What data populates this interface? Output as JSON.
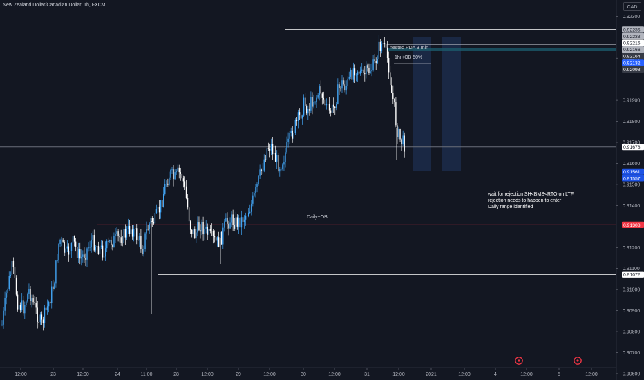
{
  "header": {
    "title": "New Zealand Dollar/Canadian Dollar, 1h, FXCM",
    "currency": "CAD"
  },
  "annotations": {
    "nested_pda": "nested PDA 3 min",
    "ob_50": "1hr+OB 50%",
    "daily_ob": "Daily+OB",
    "note_lines": [
      "wait for rejection SH<BMS<RTO on LTF",
      "rejection needs to happen to enter",
      "Daily range identified"
    ]
  },
  "chart_data": {
    "type": "candlestick",
    "title": "New Zealand Dollar/Canadian Dollar, 1h, FXCM",
    "y_ticks": [
      "0.92300",
      "0.92100",
      "0.91900",
      "0.91800",
      "0.91700",
      "0.91600",
      "0.91500",
      "0.91400",
      "0.91200",
      "0.91100",
      "0.91000",
      "0.90900",
      "0.90800",
      "0.90700",
      "0.90600"
    ],
    "x_ticks": [
      "12:00",
      "23",
      "12:00",
      "24",
      "11:00",
      "28",
      "12:00",
      "29",
      "12:00",
      "30",
      "12:00",
      "31",
      "12:00",
      "2021",
      "12:00",
      "4",
      "12:00",
      "5",
      "12:00"
    ],
    "price_labels": [
      {
        "value": "0.92236",
        "color": "#b2b5be",
        "text": "#131722"
      },
      {
        "value": "0.92233",
        "color": "#b2b5be",
        "text": "#131722"
      },
      {
        "value": "0.92216",
        "color": "#ffffff",
        "text": "#131722"
      },
      {
        "value": "0.92166",
        "color": "#b2b5be",
        "text": "#131722"
      },
      {
        "value": "0.92164",
        "color": "#363a45",
        "text": "#ffffff"
      },
      {
        "value": "0.92132",
        "color": "#2962ff",
        "text": "#ffffff"
      },
      {
        "value": "0.92098",
        "color": "#363a45",
        "text": "#ffffff"
      },
      {
        "value": "0.91678",
        "color": "#ffffff",
        "text": "#131722"
      },
      {
        "value": "0.91561",
        "color": "#1e53e5",
        "text": "#ffffff"
      },
      {
        "value": "0.91557",
        "color": "#1e53e5",
        "text": "#ffffff"
      },
      {
        "value": "0.91308",
        "color": "#f23645",
        "text": "#ffffff"
      },
      {
        "value": "0.91072",
        "color": "#ffffff",
        "text": "#131722"
      }
    ],
    "y_range": [
      0.906,
      0.923
    ],
    "last_price": "0.91678",
    "colors": {
      "up": "#42a5f5",
      "down": "#ffffff",
      "daily_ob": "#f23645",
      "zone": "#1c2b4a"
    },
    "grid": false
  }
}
